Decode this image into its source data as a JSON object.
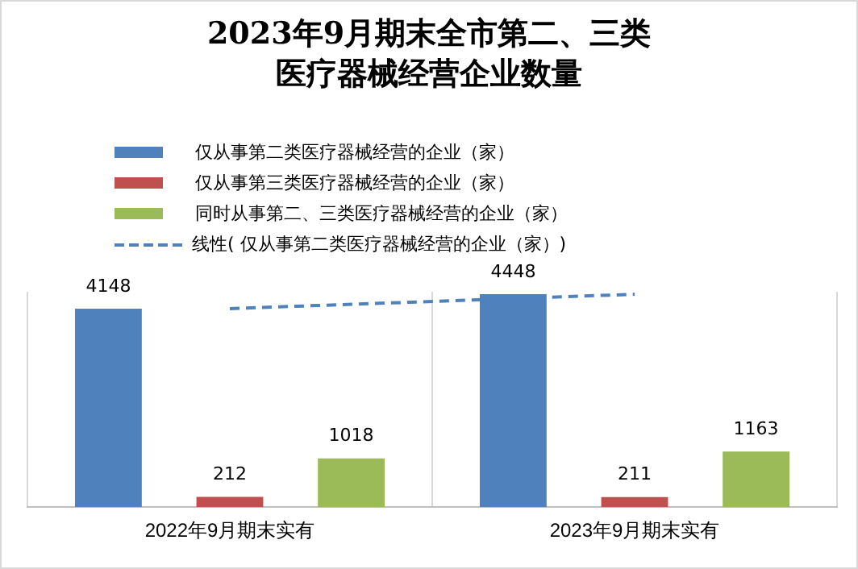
{
  "chart_data": {
    "type": "bar",
    "title": "2023年9月期末全市第二、三类医疗器械经营企业数量",
    "categories": [
      "2022年9月期末实有",
      "2023年9月期末实有"
    ],
    "series": [
      {
        "name": "仅从事第二类医疗器械经营的企业（家）",
        "color": "#4f81bd",
        "values": [
          4148,
          4448
        ],
        "value_labels": [
          "4148",
          "4448"
        ]
      },
      {
        "name": "仅从事第三类医疗器械经营的企业（家）",
        "color": "#c0504d",
        "values": [
          212,
          211
        ],
        "value_labels": [
          "212",
          "211"
        ]
      },
      {
        "name": "同时从事第二、三类医疗器械经营的企业（家）",
        "color": "#9bbb59",
        "values": [
          1018,
          1163
        ],
        "value_labels": [
          "1018",
          "1163"
        ]
      },
      {
        "name": "线性(  仅从事第二类医疗器械经营的企业（家）)",
        "type": "line",
        "x": [
          "2022年9月期末实有",
          "2023年9月期末实有"
        ],
        "color": "#4f81bd",
        "values": [
          4148,
          4448
        ],
        "line_style": "dashed",
        "marker": "none"
      }
    ],
    "legend": "top",
    "grid": "x",
    "tick_labels": "x"
  }
}
